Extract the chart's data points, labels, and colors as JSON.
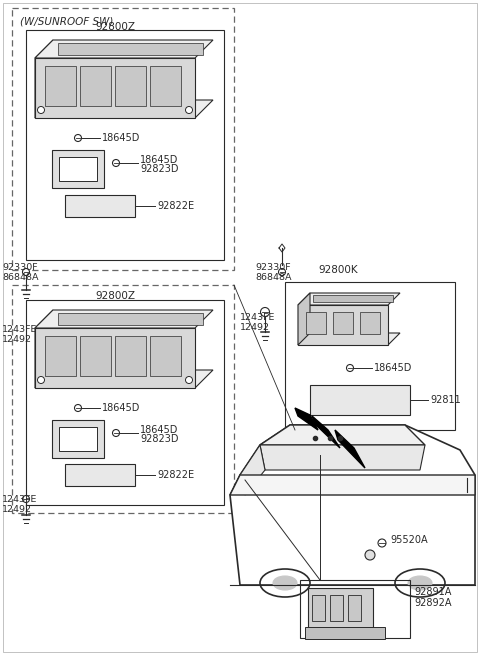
{
  "bg_color": "#ffffff",
  "line_color": "#2a2a2a",
  "gray_fill": "#d8d8d8",
  "light_gray": "#eeeeee",
  "mid_gray": "#c8c8c8",
  "labels": {
    "sunroof_sw": "(W/SUNROOF SW)",
    "92800Z_top": "92800Z",
    "92800Z_bot": "92800Z",
    "92800K": "92800K",
    "18645D_1": "18645D",
    "18645D_2": "18645D",
    "18645D_3": "18645D",
    "18645D_4": "18645D",
    "18645D_5": "18645D",
    "92823D_1": "92823D",
    "92823D_2": "92823D",
    "92822E_1": "92822E",
    "92822E_2": "92822E",
    "92811": "92811",
    "92330F_L": "92330F",
    "86848A_L": "86848A",
    "92330F_R": "92330F",
    "86848A_R": "86848A",
    "1243FE_L": "1243FE",
    "12492_L": "12492",
    "1243FE_C": "1243FE",
    "12492_C": "12492",
    "95520A": "95520A",
    "92891A": "92891A",
    "92892A": "92892A"
  }
}
